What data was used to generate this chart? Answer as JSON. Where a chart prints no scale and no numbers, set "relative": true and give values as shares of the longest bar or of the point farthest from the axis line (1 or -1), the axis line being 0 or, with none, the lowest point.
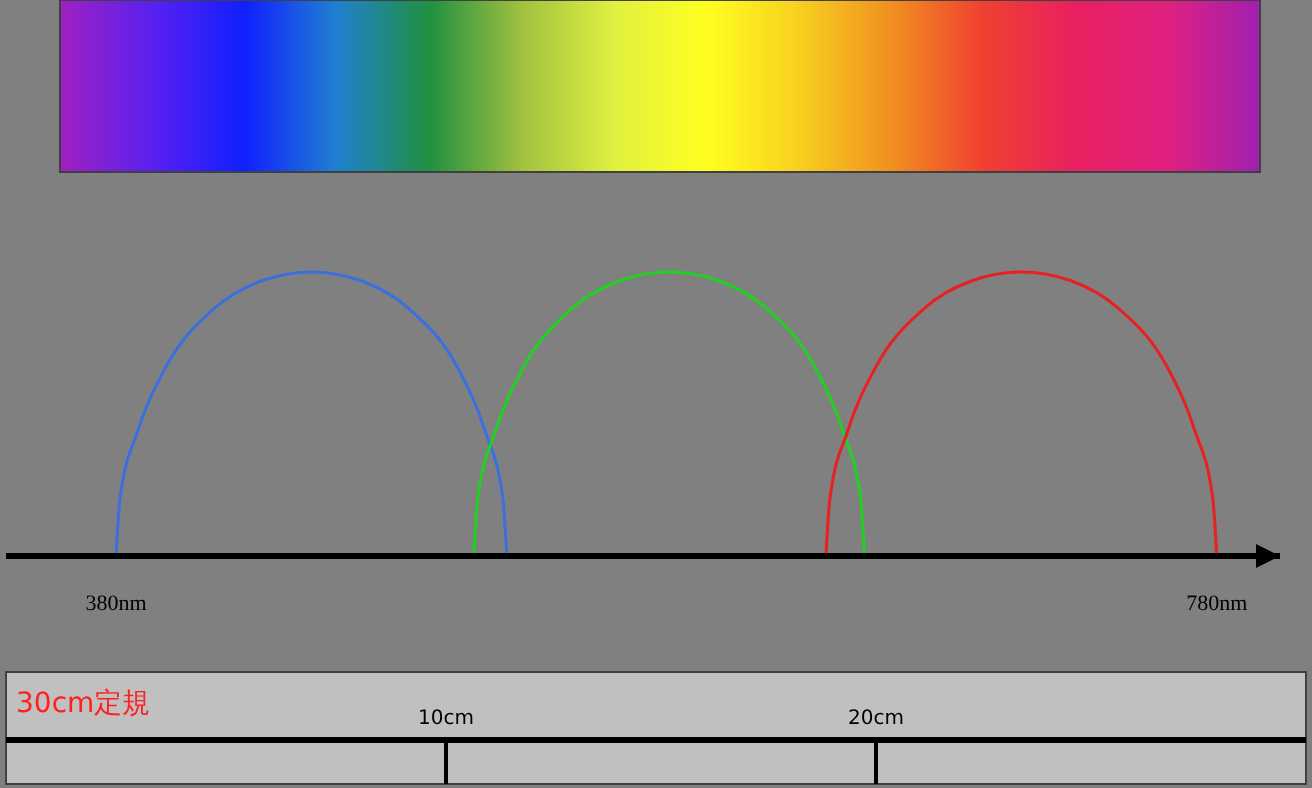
{
  "chart_data": {
    "type": "line",
    "relative": true,
    "xlim": [
      340,
      803
    ],
    "xticks": [
      {
        "value": 380,
        "label": "380nm"
      },
      {
        "value": 780,
        "label": "780nm"
      }
    ],
    "marker": "none",
    "line_style": "solid",
    "grid": false,
    "series": [
      {
        "color": "#3a6fe0",
        "x": [
          380,
          381.4,
          387.9,
          397.8,
          415.5,
          433.3,
          451,
          468.8,
          486.5,
          504.3,
          514.1,
          520.6,
          522
        ],
        "values": [
          0,
          0.2,
          0.44,
          0.66,
          0.87,
          0.97,
          1,
          0.97,
          0.87,
          0.66,
          0.44,
          0.2,
          0
        ]
      },
      {
        "color": "#22d022",
        "x": [
          510,
          511.4,
          517.9,
          527.8,
          545.5,
          563.3,
          581,
          598.8,
          616.5,
          634.3,
          644.1,
          650.6,
          652
        ],
        "values": [
          0,
          0.2,
          0.44,
          0.66,
          0.87,
          0.97,
          1,
          0.97,
          0.87,
          0.66,
          0.44,
          0.2,
          0
        ]
      },
      {
        "color": "#e82020",
        "x": [
          638,
          639.4,
          645.9,
          655.8,
          673.5,
          691.3,
          709,
          726.8,
          744.5,
          762.3,
          772.1,
          778.6,
          780
        ],
        "values": [
          0,
          0.2,
          0.44,
          0.66,
          0.87,
          0.97,
          1,
          0.97,
          0.87,
          0.66,
          0.44,
          0.2,
          0
        ]
      }
    ],
    "annotations": [
      "30cm定規",
      "10cm",
      "20cm"
    ]
  }
}
